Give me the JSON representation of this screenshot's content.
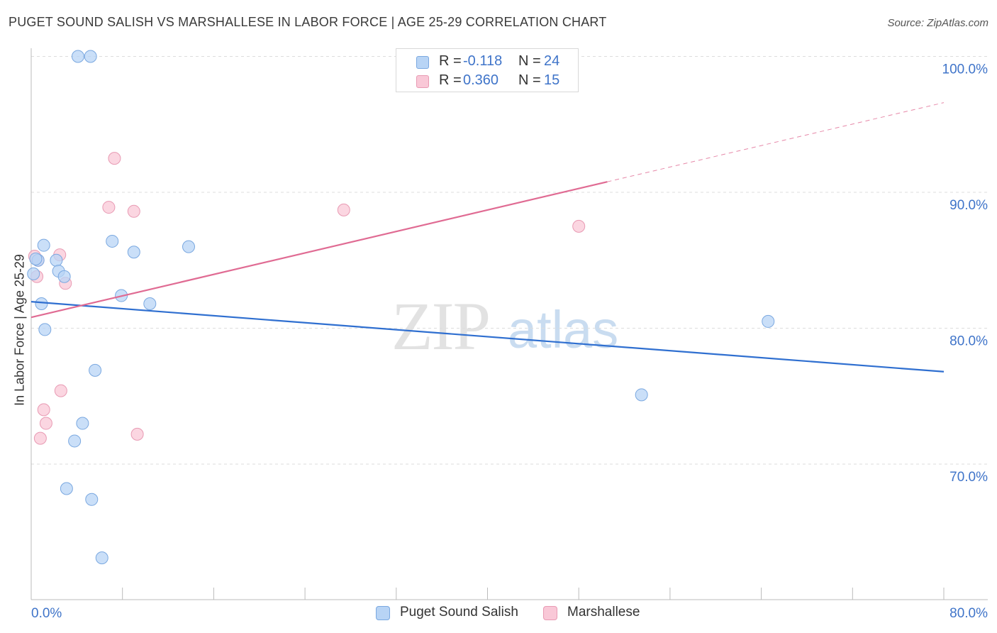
{
  "header": {
    "title": "PUGET SOUND SALISH VS MARSHALLESE IN LABOR FORCE | AGE 25-29 CORRELATION CHART",
    "source": "Source: ZipAtlas.com"
  },
  "watermark": {
    "zip": "ZIP",
    "atlas": "atlas"
  },
  "legend": {
    "items": [
      {
        "r_label": "R =",
        "r_value": "-0.118",
        "n_label": "N =",
        "n_value": "24"
      },
      {
        "r_label": "R =",
        "r_value": "0.360",
        "n_label": "N =",
        "n_value": "15"
      }
    ]
  },
  "colors": {
    "series1_fill": "#b8d4f5",
    "series1_stroke": "#7aa8e0",
    "series1_line": "#2f6fd0",
    "series2_fill": "#f9c8d7",
    "series2_stroke": "#e89ab3",
    "series2_line": "#e06b93",
    "axis_label": "#3f74c9",
    "grid": "#dddddd"
  },
  "chart_data": {
    "type": "scatter",
    "title": "PUGET SOUND SALISH VS MARSHALLESE IN LABOR FORCE | AGE 25-29 CORRELATION CHART",
    "xlabel": "",
    "ylabel": "In Labor Force | Age 25-29",
    "xlim": [
      0,
      80
    ],
    "ylim": [
      60.0,
      102.0
    ],
    "x_tick_labels": [
      "0.0%",
      "80.0%"
    ],
    "y_ticks": [
      70,
      80,
      90,
      100
    ],
    "y_tick_labels": [
      "70.0%",
      "80.0%",
      "90.0%",
      "100.0%"
    ],
    "grid": "horizontal dashed",
    "legend_position": "top-center",
    "series": [
      {
        "name": "Puget Sound Salish",
        "r": -0.118,
        "n": 24,
        "points": [
          [
            0.2,
            84.0
          ],
          [
            0.6,
            85.0
          ],
          [
            0.9,
            81.8
          ],
          [
            1.1,
            86.1
          ],
          [
            1.2,
            79.9
          ],
          [
            2.2,
            85.0
          ],
          [
            2.4,
            84.2
          ],
          [
            2.9,
            83.8
          ],
          [
            3.1,
            68.2
          ],
          [
            3.8,
            71.7
          ],
          [
            4.1,
            100.0
          ],
          [
            4.5,
            73.0
          ],
          [
            5.2,
            100.0
          ],
          [
            5.3,
            67.4
          ],
          [
            5.6,
            76.9
          ],
          [
            6.2,
            63.1
          ],
          [
            7.9,
            82.4
          ],
          [
            7.1,
            86.4
          ],
          [
            9.0,
            85.6
          ],
          [
            10.4,
            81.8
          ],
          [
            13.8,
            86.0
          ],
          [
            53.5,
            75.1
          ],
          [
            64.6,
            80.5
          ],
          [
            0.4,
            85.1
          ]
        ],
        "trend": {
          "x": [
            0,
            80
          ],
          "y": [
            81.95,
            76.8
          ]
        }
      },
      {
        "name": "Marshallese",
        "r": 0.36,
        "n": 15,
        "points": [
          [
            0.3,
            85.3
          ],
          [
            0.5,
            83.8
          ],
          [
            0.8,
            71.9
          ],
          [
            1.1,
            74.0
          ],
          [
            1.3,
            73.0
          ],
          [
            2.5,
            85.4
          ],
          [
            2.6,
            75.4
          ],
          [
            3.0,
            83.3
          ],
          [
            6.8,
            88.9
          ],
          [
            7.3,
            92.5
          ],
          [
            9.0,
            88.6
          ],
          [
            9.3,
            72.2
          ],
          [
            27.4,
            88.7
          ],
          [
            48.0,
            87.5
          ],
          [
            0.6,
            85.0
          ]
        ],
        "trend": {
          "x": [
            0,
            80
          ],
          "y": [
            80.8,
            96.6
          ],
          "solid_until_x": 50.5
        }
      }
    ]
  }
}
